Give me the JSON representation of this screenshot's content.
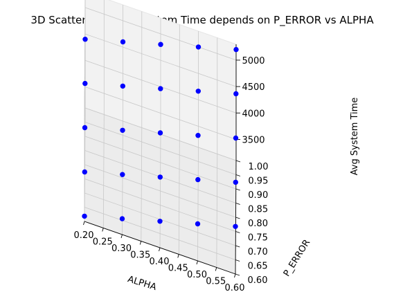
{
  "chart_data": {
    "type": "scatter",
    "title": "3D Scatter: Average System Time depends on P_ERROR vs ALPHA",
    "xlabel": "ALPHA",
    "ylabel": "P_ERROR",
    "zlabel": "Avg System Time",
    "xlim": [
      0.2,
      0.6
    ],
    "ylim": [
      0.6,
      1.0
    ],
    "zlim": [
      3100,
      5300
    ],
    "x_ticks": [
      "0.20",
      "0.25",
      "0.30",
      "0.35",
      "0.40",
      "0.45",
      "0.50",
      "0.55",
      "0.60"
    ],
    "y_ticks": [
      "0.60",
      "0.65",
      "0.70",
      "0.75",
      "0.80",
      "0.85",
      "0.90",
      "0.95",
      "1.00"
    ],
    "z_ticks": [
      "3500",
      "4000",
      "4500",
      "5000"
    ],
    "point_color": "#0000ff",
    "grid": true,
    "points": [
      {
        "x": 0.2,
        "y": 0.6,
        "z": 3200
      },
      {
        "x": 0.2,
        "y": 0.7,
        "z": 3500
      },
      {
        "x": 0.2,
        "y": 0.8,
        "z": 3800
      },
      {
        "x": 0.2,
        "y": 0.9,
        "z": 4100
      },
      {
        "x": 0.2,
        "y": 1.0,
        "z": 4400
      },
      {
        "x": 0.3,
        "y": 0.6,
        "z": 3400
      },
      {
        "x": 0.3,
        "y": 0.7,
        "z": 3700
      },
      {
        "x": 0.3,
        "y": 0.8,
        "z": 4000
      },
      {
        "x": 0.3,
        "y": 0.9,
        "z": 4300
      },
      {
        "x": 0.3,
        "y": 1.0,
        "z": 4600
      },
      {
        "x": 0.4,
        "y": 0.6,
        "z": 3600
      },
      {
        "x": 0.4,
        "y": 0.7,
        "z": 3900
      },
      {
        "x": 0.4,
        "y": 0.8,
        "z": 4200
      },
      {
        "x": 0.4,
        "y": 0.9,
        "z": 4500
      },
      {
        "x": 0.4,
        "y": 1.0,
        "z": 4800
      },
      {
        "x": 0.5,
        "y": 0.6,
        "z": 3800
      },
      {
        "x": 0.5,
        "y": 0.7,
        "z": 4100
      },
      {
        "x": 0.5,
        "y": 0.8,
        "z": 4400
      },
      {
        "x": 0.5,
        "y": 0.9,
        "z": 4700
      },
      {
        "x": 0.5,
        "y": 1.0,
        "z": 5000
      },
      {
        "x": 0.6,
        "y": 0.6,
        "z": 4000
      },
      {
        "x": 0.6,
        "y": 0.7,
        "z": 4300
      },
      {
        "x": 0.6,
        "y": 0.8,
        "z": 4600
      },
      {
        "x": 0.6,
        "y": 0.9,
        "z": 4900
      },
      {
        "x": 0.6,
        "y": 1.0,
        "z": 5200
      }
    ]
  }
}
